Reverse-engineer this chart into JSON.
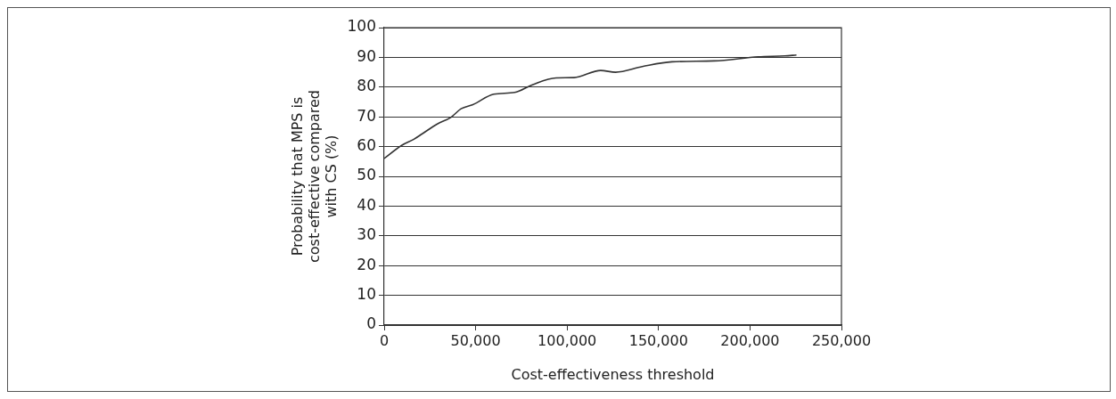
{
  "chart_data": {
    "type": "line",
    "xlabel": "Cost-effectiveness threshold",
    "ylabel": "Probability that MPS is cost-effective compared with CS (%)",
    "x": [
      0,
      9550,
      16000,
      20800,
      29000,
      36400,
      42000,
      48500,
      59900,
      71300,
      81000,
      94000,
      103800,
      118400,
      126500,
      141100,
      157400,
      180300,
      204500,
      219000,
      225400
    ],
    "series": [
      {
        "color": "#333333",
        "values": [
          56,
          60.4,
          62.4,
          64.3,
          67.6,
          69.8,
          72.7,
          74.1,
          77.6,
          78.2,
          80.8,
          83.1,
          83.2,
          85.6,
          85.0,
          86.9,
          88.5,
          88.8,
          90.2,
          90.5,
          90.8
        ]
      }
    ],
    "xlim": [
      0,
      250000
    ],
    "xticks": [
      0,
      {
        "value": 50000,
        "label": "50,000"
      },
      {
        "value": 100000,
        "label": "100,000"
      },
      {
        "value": 150000,
        "label": "150,000"
      },
      {
        "value": 200000,
        "label": "200,000"
      },
      {
        "value": 250000,
        "label": "250,000"
      }
    ],
    "ylim": [
      0,
      100
    ],
    "yticks": [
      0,
      10,
      20,
      30,
      40,
      50,
      60,
      70,
      80,
      90,
      100
    ],
    "grid": "y",
    "legend": false,
    "marker": "none",
    "line_style": "solid"
  }
}
